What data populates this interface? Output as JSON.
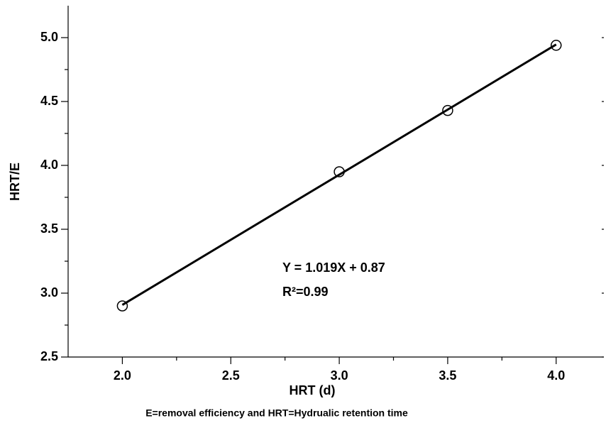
{
  "chart_data": {
    "type": "scatter",
    "x_label": "HRT (d)",
    "y_label": "HRT/E",
    "caption": "E=removal efficiency and HRT=Hydrualic retention time",
    "annotations": {
      "equation": "Y = 1.019X + 0.87",
      "r_squared": "R²=0.99"
    },
    "x": [
      2.0,
      3.0,
      3.5,
      4.0
    ],
    "values": [
      2.9,
      3.95,
      4.43,
      4.94
    ],
    "color": "#000000",
    "fit": {
      "slope": 1.019,
      "intercept": 0.87
    },
    "xlim": [
      1.75,
      4.22
    ],
    "ylim": [
      2.5,
      5.25
    ],
    "xticks": [
      {
        "value": 2,
        "label": "2.0"
      },
      2.5,
      {
        "value": 3,
        "label": "3.0"
      },
      3.5,
      {
        "value": 4,
        "label": "4.0"
      }
    ],
    "yticks": [
      2.5,
      {
        "value": 3,
        "label": "3.0"
      },
      3.5,
      {
        "value": 4,
        "label": "4.0"
      },
      4.5,
      {
        "value": 5,
        "label": "5.0"
      }
    ],
    "xminorticks": [
      2.25,
      2.75,
      3.25,
      3.75
    ],
    "yminorticks": [
      2.75,
      3.25,
      3.75,
      4.25,
      4.75
    ],
    "grid": false
  }
}
